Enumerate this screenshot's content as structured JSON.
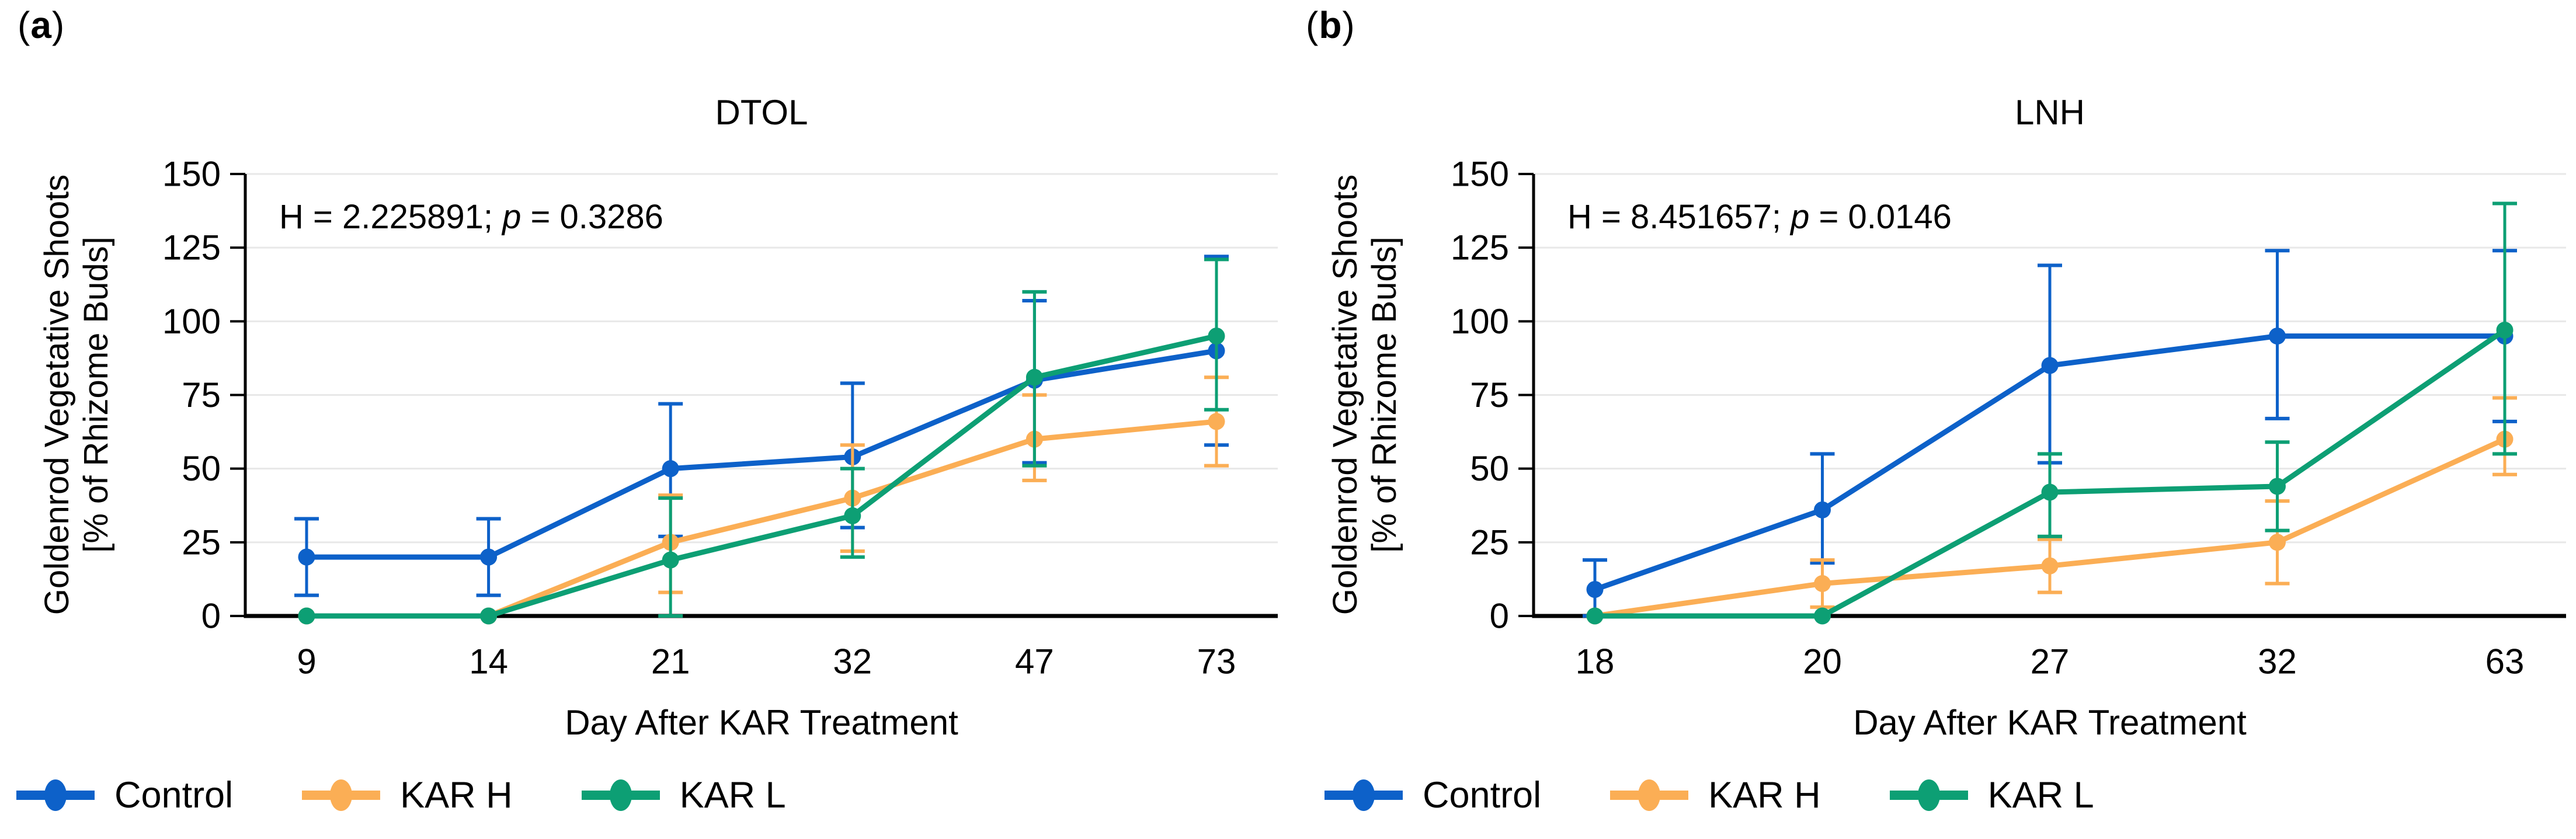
{
  "figure": {
    "background": "#ffffff",
    "text_color": "#000000",
    "gridline_color": "#e8e8e8",
    "axis_color": "#000000"
  },
  "panels": [
    {
      "label_open": "(",
      "label_letter": "a",
      "label_close": ")"
    },
    {
      "label_open": "(",
      "label_letter": "b",
      "label_close": ")"
    }
  ],
  "chart_data": [
    {
      "type": "line",
      "title": "DTOL",
      "annotation": {
        "h_part": "H = 2.225891; ",
        "p_symbol": "p",
        "p_part": " = 0.3286"
      },
      "xlabel": "Day After KAR Treatment",
      "ylabel_line1": "Goldenrod Vegetative Shoots",
      "ylabel_line2": "[% of Rhizome Buds]",
      "categories": [
        9,
        14,
        21,
        32,
        47,
        73
      ],
      "ylim": [
        0,
        150
      ],
      "yticks": [
        0,
        25,
        50,
        75,
        100,
        125,
        150
      ],
      "grid": true,
      "legend_position": "bottom",
      "series": [
        {
          "name": "Control",
          "color": "#0d61c9",
          "values": [
            20,
            20,
            50,
            54,
            80,
            90
          ],
          "err_lo": [
            7,
            7,
            27,
            30,
            52,
            58
          ],
          "err_hi": [
            33,
            33,
            72,
            79,
            107,
            122
          ]
        },
        {
          "name": "KAR H",
          "color": "#fbae55",
          "values": [
            0,
            0,
            25,
            40,
            60,
            66
          ],
          "err_lo": [
            null,
            null,
            8,
            22,
            46,
            51
          ],
          "err_hi": [
            null,
            null,
            41,
            58,
            75,
            81
          ]
        },
        {
          "name": "KAR L",
          "color": "#0d9f74",
          "values": [
            0,
            0,
            19,
            34,
            81,
            95
          ],
          "err_lo": [
            null,
            null,
            0,
            20,
            51,
            70
          ],
          "err_hi": [
            null,
            null,
            40,
            50,
            110,
            121
          ]
        }
      ]
    },
    {
      "type": "line",
      "title": "LNH",
      "annotation": {
        "h_part": "H = 8.451657; ",
        "p_symbol": "p",
        "p_part": " = 0.0146"
      },
      "xlabel": "Day After KAR Treatment",
      "ylabel_line1": "Goldenrod Vegetative Shoots",
      "ylabel_line2": "[% of Rhizome Buds]",
      "categories": [
        18,
        20,
        27,
        32,
        63
      ],
      "ylim": [
        0,
        150
      ],
      "yticks": [
        0,
        25,
        50,
        75,
        100,
        125,
        150
      ],
      "grid": true,
      "legend_position": "bottom",
      "series": [
        {
          "name": "Control",
          "color": "#0d61c9",
          "values": [
            9,
            36,
            85,
            95,
            95
          ],
          "err_lo": [
            0,
            18,
            52,
            67,
            66
          ],
          "err_hi": [
            19,
            55,
            119,
            124,
            124
          ]
        },
        {
          "name": "KAR H",
          "color": "#fbae55",
          "values": [
            0,
            11,
            17,
            25,
            60
          ],
          "err_lo": [
            null,
            3,
            8,
            11,
            48
          ],
          "err_hi": [
            null,
            19,
            26,
            39,
            74
          ]
        },
        {
          "name": "KAR L",
          "color": "#0d9f74",
          "values": [
            0,
            0,
            42,
            44,
            97
          ],
          "err_lo": [
            null,
            null,
            27,
            29,
            55
          ],
          "err_hi": [
            null,
            null,
            55,
            59,
            140
          ]
        }
      ]
    }
  ]
}
